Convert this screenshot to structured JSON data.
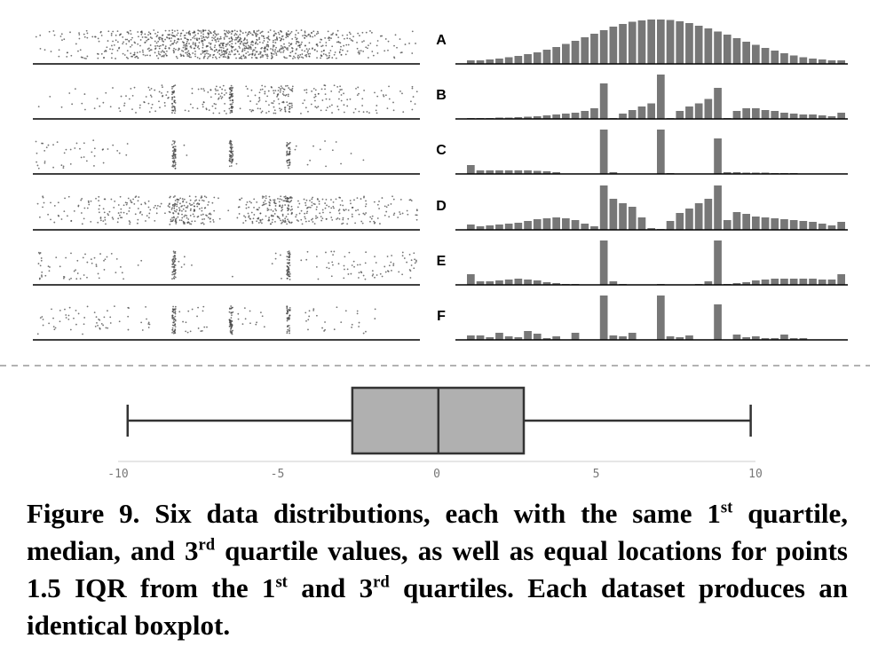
{
  "chart_data": [
    {
      "type": "strip-histogram",
      "label": "A",
      "xlim": [
        -10,
        10
      ],
      "ylim": [
        0,
        100
      ],
      "color": "#777777",
      "bins": [
        -10,
        -9.5,
        -9,
        -8.5,
        -8,
        -7.5,
        -7,
        -6.5,
        -6,
        -5.5,
        -5,
        -4.5,
        -4,
        -3.5,
        -3,
        -2.5,
        -2,
        -1.5,
        -1,
        -0.5,
        0,
        0.5,
        1,
        1.5,
        2,
        2.5,
        3,
        3.5,
        4,
        4.5,
        5,
        5.5,
        6,
        6.5,
        7,
        7.5,
        8,
        8.5,
        9,
        9.5,
        10
      ],
      "values": [
        8,
        8,
        10,
        12,
        15,
        18,
        22,
        26,
        32,
        38,
        45,
        52,
        60,
        68,
        76,
        84,
        90,
        95,
        98,
        100,
        100,
        99,
        96,
        92,
        86,
        80,
        73,
        66,
        58,
        50,
        43,
        36,
        30,
        24,
        19,
        15,
        12,
        10,
        8,
        8
      ]
    },
    {
      "type": "strip-histogram",
      "label": "B",
      "xlim": [
        -10,
        10
      ],
      "ylim": [
        0,
        100
      ],
      "color": "#777777",
      "bins": [
        -10,
        -9.5,
        -9,
        -8.5,
        -8,
        -7.5,
        -7,
        -6.5,
        -6,
        -5.5,
        -5,
        -4.5,
        -4,
        -3.5,
        -3,
        -2.5,
        -2,
        -1.5,
        -1,
        -0.5,
        0,
        0.5,
        1,
        1.5,
        2,
        2.5,
        3,
        3.5,
        4,
        4.5,
        5,
        5.5,
        6,
        6.5,
        7,
        7.5,
        8,
        8.5,
        9,
        9.5,
        10
      ],
      "values": [
        2,
        2,
        2,
        3,
        3,
        4,
        5,
        6,
        8,
        10,
        12,
        14,
        18,
        24,
        80,
        2,
        12,
        20,
        28,
        35,
        100,
        2,
        18,
        28,
        35,
        45,
        70,
        2,
        18,
        24,
        24,
        20,
        18,
        14,
        12,
        10,
        10,
        8,
        6,
        14
      ]
    },
    {
      "type": "strip-histogram",
      "label": "C",
      "xlim": [
        -10,
        10
      ],
      "ylim": [
        0,
        100
      ],
      "color": "#777777",
      "bins": [
        -10,
        -9.5,
        -9,
        -8.5,
        -8,
        -7.5,
        -7,
        -6.5,
        -6,
        -5.5,
        -5,
        -4.5,
        -4,
        -3.5,
        -3,
        -2.5,
        -2,
        -1.5,
        -1,
        -0.5,
        0,
        0.5,
        1,
        1.5,
        2,
        2.5,
        3,
        3.5,
        4,
        4.5,
        5,
        5.5,
        6,
        6.5,
        7,
        7.5,
        8,
        8.5,
        9,
        9.5,
        10
      ],
      "values": [
        20,
        8,
        8,
        8,
        8,
        8,
        8,
        7,
        6,
        4,
        0,
        0,
        0,
        0,
        100,
        4,
        0,
        0,
        0,
        0,
        100,
        2,
        0,
        0,
        0,
        0,
        80,
        4,
        4,
        3,
        3,
        3,
        2,
        2,
        2,
        0,
        0,
        0,
        0,
        0
      ]
    },
    {
      "type": "strip-histogram",
      "label": "D",
      "xlim": [
        -10,
        10
      ],
      "ylim": [
        0,
        100
      ],
      "color": "#777777",
      "bins": [
        -10,
        -9.5,
        -9,
        -8.5,
        -8,
        -7.5,
        -7,
        -6.5,
        -6,
        -5.5,
        -5,
        -4.5,
        -4,
        -3.5,
        -3,
        -2.5,
        -2,
        -1.5,
        -1,
        -0.5,
        0,
        0.5,
        1,
        1.5,
        2,
        2.5,
        3,
        3.5,
        4,
        4.5,
        5,
        5.5,
        6,
        6.5,
        7,
        7.5,
        8,
        8.5,
        9,
        9.5,
        10
      ],
      "values": [
        12,
        8,
        10,
        12,
        14,
        16,
        20,
        24,
        26,
        28,
        26,
        22,
        14,
        8,
        100,
        70,
        60,
        52,
        28,
        4,
        2,
        20,
        38,
        48,
        60,
        70,
        100,
        22,
        40,
        36,
        30,
        28,
        26,
        24,
        22,
        20,
        18,
        14,
        10,
        18
      ]
    },
    {
      "type": "strip-histogram",
      "label": "E",
      "xlim": [
        -10,
        10
      ],
      "ylim": [
        0,
        100
      ],
      "color": "#777777",
      "bins": [
        -10,
        -9.5,
        -9,
        -8.5,
        -8,
        -7.5,
        -7,
        -6.5,
        -6,
        -5.5,
        -5,
        -4.5,
        -4,
        -3.5,
        -3,
        -2.5,
        -2,
        -1.5,
        -1,
        -0.5,
        0,
        0.5,
        1,
        1.5,
        2,
        2.5,
        3,
        3.5,
        4,
        4.5,
        5,
        5.5,
        6,
        6.5,
        7,
        7.5,
        8,
        8.5,
        9,
        9.5,
        10
      ],
      "values": [
        24,
        8,
        8,
        10,
        12,
        14,
        12,
        10,
        6,
        4,
        2,
        2,
        0,
        0,
        100,
        8,
        2,
        0,
        0,
        0,
        2,
        0,
        0,
        0,
        2,
        8,
        100,
        2,
        4,
        6,
        10,
        12,
        14,
        14,
        14,
        14,
        14,
        12,
        12,
        24
      ]
    },
    {
      "type": "strip-histogram",
      "label": "F",
      "xlim": [
        -10,
        10
      ],
      "ylim": [
        0,
        100
      ],
      "color": "#777777",
      "bins": [
        -10,
        -9.5,
        -9,
        -8.5,
        -8,
        -7.5,
        -7,
        -6.5,
        -6,
        -5.5,
        -5,
        -4.5,
        -4,
        -3.5,
        -3,
        -2.5,
        -2,
        -1.5,
        -1,
        -0.5,
        0,
        0.5,
        1,
        1.5,
        2,
        2.5,
        3,
        3.5,
        4,
        4.5,
        5,
        5.5,
        6,
        6.5,
        7,
        7.5,
        8,
        8.5,
        9,
        9.5,
        10
      ],
      "values": [
        10,
        10,
        6,
        16,
        8,
        6,
        20,
        14,
        4,
        8,
        0,
        16,
        0,
        0,
        100,
        10,
        8,
        16,
        0,
        0,
        100,
        8,
        6,
        10,
        0,
        0,
        80,
        0,
        12,
        6,
        8,
        4,
        4,
        12,
        4,
        4,
        0,
        0,
        0,
        0
      ]
    },
    {
      "type": "boxplot",
      "xlim": [
        -10,
        10
      ],
      "xticks": [
        -10,
        -5,
        0,
        5,
        10
      ],
      "color": "#b0b0b0",
      "whislo": -9.7,
      "q1": -2.65,
      "med": 0.05,
      "q3": 2.73,
      "whishi": 9.85
    }
  ],
  "caption": [
    "Figure 9. Six data distributions, each with the same 1",
    "st",
    " quartile, median, and 3",
    "rd",
    " quartile values, as well as equal locations for points 1.5 IQR from the 1",
    "st",
    " and 3",
    "rd",
    " quartiles. Each dataset produces an identical boxplot."
  ]
}
